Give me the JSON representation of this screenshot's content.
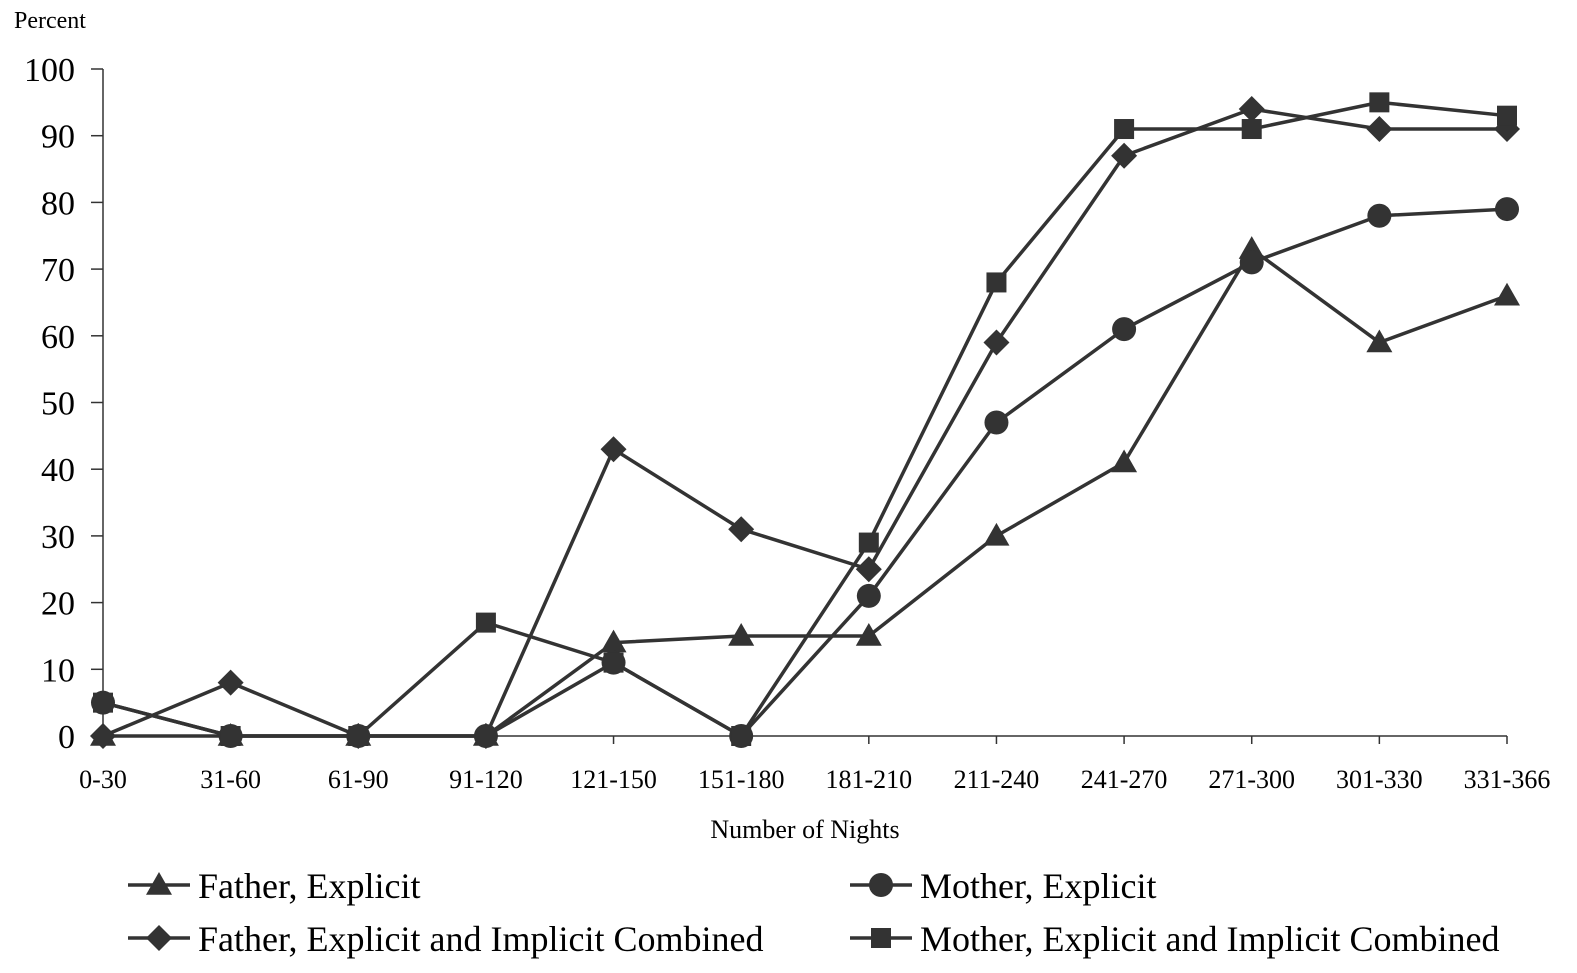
{
  "chart_data": {
    "type": "line",
    "title": "",
    "xlabel": "Number of Nights",
    "ylabel": "Percent",
    "ylim": [
      0,
      100
    ],
    "yticks": [
      0,
      10,
      20,
      30,
      40,
      50,
      60,
      70,
      80,
      90,
      100
    ],
    "grid": false,
    "legend_position": "bottom",
    "categories": [
      "0-30",
      "31-60",
      "61-90",
      "91-120",
      "121-150",
      "151-180",
      "181-210",
      "211-240",
      "241-270",
      "271-300",
      "301-330",
      "331-366"
    ],
    "series": [
      {
        "name": "Father, Explicit",
        "marker": "triangle",
        "color": "#333333",
        "values": [
          0,
          0,
          0,
          0,
          14,
          15,
          15,
          30,
          41,
          73,
          59,
          66
        ]
      },
      {
        "name": "Mother, Explicit",
        "marker": "circle",
        "color": "#333333",
        "values": [
          5,
          0,
          0,
          0,
          11,
          0,
          21,
          47,
          61,
          71,
          78,
          79
        ]
      },
      {
        "name": "Father, Explicit and Implicit Combined",
        "marker": "diamond",
        "color": "#333333",
        "values": [
          0,
          8,
          0,
          0,
          43,
          31,
          25,
          59,
          87,
          94,
          91,
          91
        ]
      },
      {
        "name": "Mother, Explicit and Implicit Combined",
        "marker": "square",
        "color": "#333333",
        "values": [
          5,
          0,
          0,
          17,
          11,
          0,
          29,
          68,
          91,
          91,
          95,
          93
        ]
      }
    ]
  }
}
